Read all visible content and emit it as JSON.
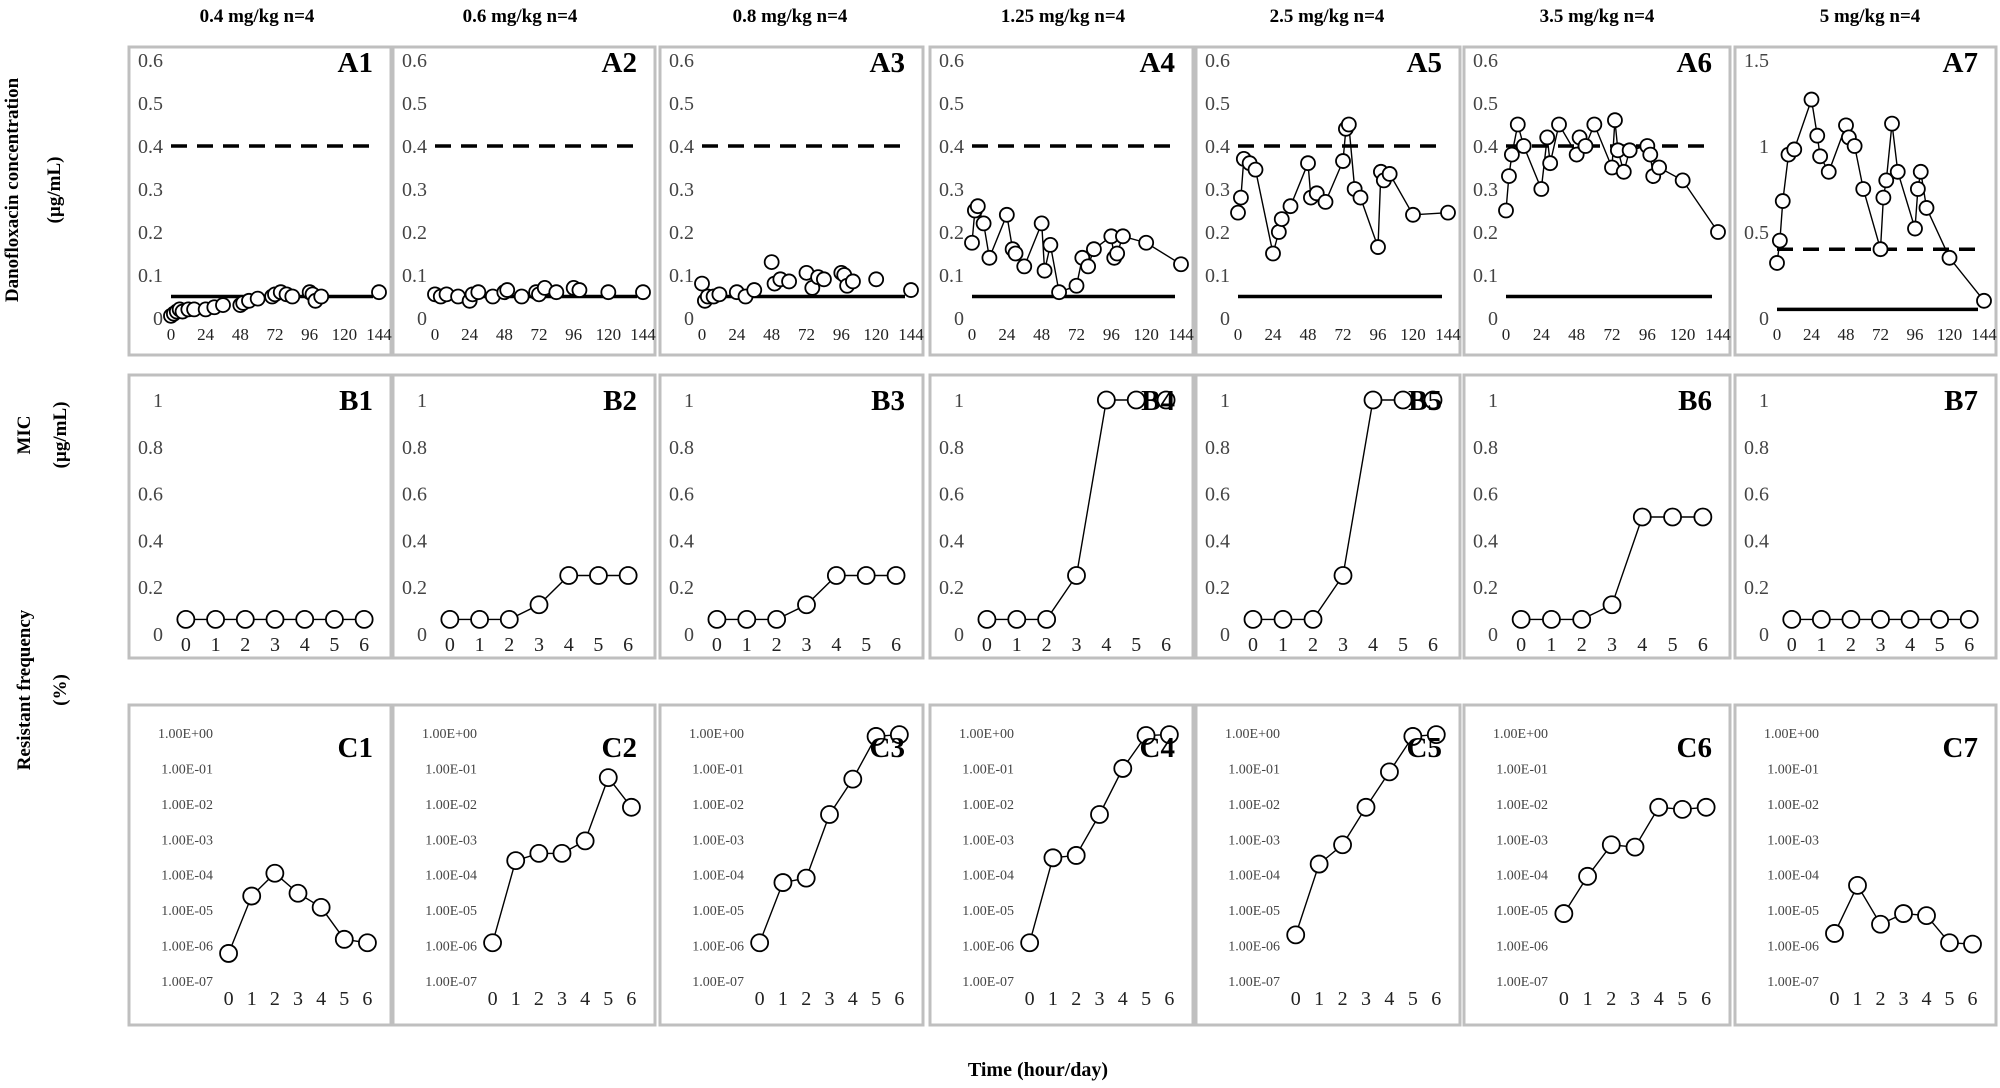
{
  "figure": {
    "x_axis_title": "Time (hour/day)",
    "row_labels": {
      "A": [
        "Danofloxacin concentration",
        "(µg/mL)"
      ],
      "B": [
        "MIC",
        "(µg/mL)"
      ],
      "C": [
        "Resistant frequency",
        "(%)"
      ]
    },
    "column_titles": [
      "0.4 mg/kg n=4",
      "0.6 mg/kg n=4",
      "0.8 mg/kg n=4",
      "1.25 mg/kg n=4",
      "2.5 mg/kg n=4",
      "3.5 mg/kg n=4",
      "5 mg/kg n=4"
    ],
    "colors": {
      "line": "#000000",
      "panel_border": "#bfbfbf",
      "marker_fill": "#ffffff"
    }
  },
  "chart_data": [
    {
      "id": "A1",
      "type": "scatter",
      "panel_label": "A1",
      "dose": "0.4 mg/kg n=4",
      "ylim": [
        0,
        0.6
      ],
      "yticks": [
        "0",
        "0.1",
        "0.2",
        "0.3",
        "0.4",
        "0.5",
        "0.6"
      ],
      "xticks": [
        "0",
        "24",
        "48",
        "72",
        "96",
        "120",
        "144"
      ],
      "xlim": [
        0,
        144
      ],
      "reference_lines": [
        {
          "style": "dashed",
          "y": 0.4
        },
        {
          "style": "solid",
          "y": 0.05
        }
      ],
      "x": [
        0,
        2,
        4,
        6,
        8,
        12,
        16,
        24,
        30,
        36,
        48,
        50,
        54,
        60,
        70,
        72,
        76,
        80,
        84,
        96,
        98,
        100,
        104,
        144
      ],
      "y": [
        0.005,
        0.01,
        0.015,
        0.02,
        0.015,
        0.02,
        0.02,
        0.02,
        0.025,
        0.03,
        0.03,
        0.035,
        0.04,
        0.045,
        0.05,
        0.055,
        0.06,
        0.055,
        0.05,
        0.06,
        0.055,
        0.04,
        0.05,
        0.06
      ]
    },
    {
      "id": "A2",
      "type": "scatter",
      "panel_label": "A2",
      "dose": "0.6 mg/kg n=4",
      "ylim": [
        0,
        0.6
      ],
      "yticks": [
        "0",
        "0.1",
        "0.2",
        "0.3",
        "0.4",
        "0.5",
        "0.6"
      ],
      "xticks": [
        "0",
        "24",
        "48",
        "72",
        "96",
        "120",
        "144"
      ],
      "xlim": [
        0,
        144
      ],
      "reference_lines": [
        {
          "style": "dashed",
          "y": 0.4
        },
        {
          "style": "solid",
          "y": 0.05
        }
      ],
      "x": [
        0,
        4,
        8,
        16,
        24,
        26,
        30,
        40,
        48,
        50,
        60,
        70,
        72,
        76,
        84,
        96,
        100,
        120,
        144
      ],
      "y": [
        0.055,
        0.05,
        0.055,
        0.05,
        0.04,
        0.055,
        0.06,
        0.05,
        0.06,
        0.065,
        0.05,
        0.06,
        0.055,
        0.07,
        0.06,
        0.07,
        0.065,
        0.06,
        0.06
      ]
    },
    {
      "id": "A3",
      "type": "scatter",
      "panel_label": "A3",
      "dose": "0.8 mg/kg n=4",
      "ylim": [
        0,
        0.6
      ],
      "yticks": [
        "0",
        "0.1",
        "0.2",
        "0.3",
        "0.4",
        "0.5",
        "0.6"
      ],
      "xticks": [
        "0",
        "24",
        "48",
        "72",
        "96",
        "120",
        "144"
      ],
      "xlim": [
        0,
        144
      ],
      "reference_lines": [
        {
          "style": "dashed",
          "y": 0.4
        },
        {
          "style": "solid",
          "y": 0.05
        }
      ],
      "x": [
        0,
        2,
        4,
        8,
        12,
        24,
        30,
        36,
        48,
        50,
        54,
        60,
        72,
        76,
        80,
        84,
        96,
        98,
        100,
        104,
        120,
        144
      ],
      "y": [
        0.08,
        0.04,
        0.05,
        0.05,
        0.055,
        0.06,
        0.05,
        0.065,
        0.13,
        0.08,
        0.09,
        0.085,
        0.105,
        0.07,
        0.095,
        0.09,
        0.105,
        0.1,
        0.075,
        0.085,
        0.09,
        0.065
      ]
    },
    {
      "id": "A4",
      "type": "scatter",
      "panel_label": "A4",
      "dose": "1.25 mg/kg n=4",
      "ylim": [
        0,
        0.6
      ],
      "yticks": [
        "0",
        "0.1",
        "0.2",
        "0.3",
        "0.4",
        "0.5",
        "0.6"
      ],
      "xticks": [
        "0",
        "24",
        "48",
        "72",
        "96",
        "120",
        "144"
      ],
      "xlim": [
        0,
        144
      ],
      "reference_lines": [
        {
          "style": "dashed",
          "y": 0.4
        },
        {
          "style": "solid",
          "y": 0.05
        }
      ],
      "x": [
        0,
        2,
        4,
        8,
        12,
        24,
        28,
        30,
        36,
        48,
        50,
        54,
        60,
        72,
        76,
        80,
        84,
        96,
        98,
        100,
        104,
        120,
        144
      ],
      "y": [
        0.175,
        0.25,
        0.26,
        0.22,
        0.14,
        0.24,
        0.16,
        0.15,
        0.12,
        0.22,
        0.11,
        0.17,
        0.06,
        0.075,
        0.14,
        0.12,
        0.16,
        0.19,
        0.14,
        0.15,
        0.19,
        0.175,
        0.125
      ]
    },
    {
      "id": "A5",
      "type": "scatter",
      "panel_label": "A5",
      "dose": "2.5 mg/kg n=4",
      "ylim": [
        0,
        0.6
      ],
      "yticks": [
        "0",
        "0.1",
        "0.2",
        "0.3",
        "0.4",
        "0.5",
        "0.6"
      ],
      "xticks": [
        "0",
        "24",
        "48",
        "72",
        "96",
        "120",
        "144"
      ],
      "xlim": [
        0,
        144
      ],
      "reference_lines": [
        {
          "style": "dashed",
          "y": 0.4
        },
        {
          "style": "solid",
          "y": 0.05
        }
      ],
      "x": [
        0,
        2,
        4,
        8,
        12,
        24,
        28,
        30,
        36,
        48,
        50,
        54,
        60,
        72,
        74,
        76,
        80,
        84,
        96,
        98,
        100,
        104,
        120,
        144
      ],
      "y": [
        0.245,
        0.28,
        0.37,
        0.36,
        0.345,
        0.15,
        0.2,
        0.23,
        0.26,
        0.36,
        0.28,
        0.29,
        0.27,
        0.365,
        0.44,
        0.45,
        0.3,
        0.28,
        0.165,
        0.34,
        0.32,
        0.335,
        0.24,
        0.245
      ]
    },
    {
      "id": "A6",
      "type": "scatter",
      "panel_label": "A6",
      "dose": "3.5 mg/kg n=4",
      "ylim": [
        0,
        0.6
      ],
      "yticks": [
        "0",
        "0.1",
        "0.2",
        "0.3",
        "0.4",
        "0.5",
        "0.6"
      ],
      "xticks": [
        "0",
        "24",
        "48",
        "72",
        "96",
        "120",
        "144"
      ],
      "xlim": [
        0,
        144
      ],
      "reference_lines": [
        {
          "style": "dashed",
          "y": 0.4
        },
        {
          "style": "solid",
          "y": 0.05
        }
      ],
      "x": [
        0,
        2,
        4,
        8,
        12,
        24,
        28,
        30,
        36,
        48,
        50,
        54,
        60,
        72,
        74,
        76,
        80,
        84,
        96,
        98,
        100,
        104,
        120,
        144
      ],
      "y": [
        0.25,
        0.33,
        0.38,
        0.45,
        0.4,
        0.3,
        0.42,
        0.36,
        0.45,
        0.38,
        0.42,
        0.4,
        0.45,
        0.35,
        0.46,
        0.39,
        0.34,
        0.39,
        0.4,
        0.38,
        0.33,
        0.35,
        0.32,
        0.2
      ]
    },
    {
      "id": "A7",
      "type": "scatter",
      "panel_label": "A7",
      "dose": "5 mg/kg n=4",
      "ylim": [
        0,
        1.5
      ],
      "yticks": [
        "0",
        "0.5",
        "1",
        "1.5"
      ],
      "xticks": [
        "0",
        "24",
        "48",
        "72",
        "96",
        "120",
        "144"
      ],
      "xlim": [
        0,
        144
      ],
      "reference_lines": [
        {
          "style": "dashed",
          "y": 0.4
        },
        {
          "style": "solid",
          "y": 0.05
        }
      ],
      "x": [
        0,
        2,
        4,
        8,
        12,
        24,
        28,
        30,
        36,
        48,
        50,
        54,
        60,
        72,
        74,
        76,
        80,
        84,
        96,
        98,
        100,
        104,
        120,
        144
      ],
      "y": [
        0.32,
        0.45,
        0.68,
        0.95,
        0.98,
        1.27,
        1.06,
        0.94,
        0.85,
        1.12,
        1.05,
        1.0,
        0.75,
        0.4,
        0.7,
        0.8,
        1.13,
        0.85,
        0.52,
        0.75,
        0.85,
        0.64,
        0.35,
        0.1
      ]
    },
    {
      "id": "B1",
      "type": "line",
      "panel_label": "B1",
      "ylim": [
        0,
        1
      ],
      "yticks": [
        "0",
        "0.2",
        "0.4",
        "0.6",
        "0.8",
        "1"
      ],
      "xticks": [
        "0",
        "1",
        "2",
        "3",
        "4",
        "5",
        "6"
      ],
      "xlim": [
        -0.5,
        6.5
      ],
      "x": [
        0,
        1,
        2,
        3,
        4,
        5,
        6
      ],
      "y": [
        0.0625,
        0.0625,
        0.0625,
        0.0625,
        0.0625,
        0.0625,
        0.0625
      ]
    },
    {
      "id": "B2",
      "type": "line",
      "panel_label": "B2",
      "ylim": [
        0,
        1
      ],
      "yticks": [
        "0",
        "0.2",
        "0.4",
        "0.6",
        "0.8",
        "1"
      ],
      "xticks": [
        "0",
        "1",
        "2",
        "3",
        "4",
        "5",
        "6"
      ],
      "xlim": [
        -0.5,
        6.5
      ],
      "x": [
        0,
        1,
        2,
        3,
        4,
        5,
        6
      ],
      "y": [
        0.0625,
        0.0625,
        0.0625,
        0.125,
        0.25,
        0.25,
        0.25
      ]
    },
    {
      "id": "B3",
      "type": "line",
      "panel_label": "B3",
      "ylim": [
        0,
        1
      ],
      "yticks": [
        "0",
        "0.2",
        "0.4",
        "0.6",
        "0.8",
        "1"
      ],
      "xticks": [
        "0",
        "1",
        "2",
        "3",
        "4",
        "5",
        "6"
      ],
      "xlim": [
        -0.5,
        6.5
      ],
      "x": [
        0,
        1,
        2,
        3,
        4,
        5,
        6
      ],
      "y": [
        0.0625,
        0.0625,
        0.0625,
        0.125,
        0.25,
        0.25,
        0.25
      ]
    },
    {
      "id": "B4",
      "type": "line",
      "panel_label": "B4",
      "ylim": [
        0,
        1
      ],
      "yticks": [
        "0",
        "0.2",
        "0.4",
        "0.6",
        "0.8",
        "1"
      ],
      "xticks": [
        "0",
        "1",
        "2",
        "3",
        "4",
        "5",
        "6"
      ],
      "xlim": [
        -0.5,
        6.5
      ],
      "x": [
        0,
        1,
        2,
        3,
        4,
        5,
        6
      ],
      "y": [
        0.0625,
        0.0625,
        0.0625,
        0.25,
        1,
        1,
        1
      ]
    },
    {
      "id": "B5",
      "type": "line",
      "panel_label": "B5",
      "ylim": [
        0,
        1
      ],
      "yticks": [
        "0",
        "0.2",
        "0.4",
        "0.6",
        "0.8",
        "1"
      ],
      "xticks": [
        "0",
        "1",
        "2",
        "3",
        "4",
        "5",
        "6"
      ],
      "xlim": [
        -0.5,
        6.5
      ],
      "x": [
        0,
        1,
        2,
        3,
        4,
        5,
        6
      ],
      "y": [
        0.0625,
        0.0625,
        0.0625,
        0.25,
        1,
        1,
        1
      ]
    },
    {
      "id": "B6",
      "type": "line",
      "panel_label": "B6",
      "ylim": [
        0,
        1
      ],
      "yticks": [
        "0",
        "0.2",
        "0.4",
        "0.6",
        "0.8",
        "1"
      ],
      "xticks": [
        "0",
        "1",
        "2",
        "3",
        "4",
        "5",
        "6"
      ],
      "xlim": [
        -0.5,
        6.5
      ],
      "x": [
        0,
        1,
        2,
        3,
        4,
        5,
        6
      ],
      "y": [
        0.0625,
        0.0625,
        0.0625,
        0.125,
        0.5,
        0.5,
        0.5
      ]
    },
    {
      "id": "B7",
      "type": "line",
      "panel_label": "B7",
      "ylim": [
        0,
        1
      ],
      "yticks": [
        "0",
        "0.2",
        "0.4",
        "0.6",
        "0.8",
        "1"
      ],
      "xticks": [
        "0",
        "1",
        "2",
        "3",
        "4",
        "5",
        "6"
      ],
      "xlim": [
        -0.5,
        6.5
      ],
      "x": [
        0,
        1,
        2,
        3,
        4,
        5,
        6
      ],
      "y": [
        0.0625,
        0.0625,
        0.0625,
        0.0625,
        0.0625,
        0.0625,
        0.0625
      ]
    },
    {
      "id": "C1",
      "type": "line",
      "panel_label": "C1",
      "yscale": "log",
      "ylim": [
        1e-07,
        1
      ],
      "yticks": [
        "1.00E-07",
        "1.00E-06",
        "1.00E-05",
        "1.00E-04",
        "1.00E-03",
        "1.00E-02",
        "1.00E-01",
        "1.00E+00"
      ],
      "xticks": [
        "0",
        "1",
        "2",
        "3",
        "4",
        "5",
        "6"
      ],
      "xlim": [
        -0.5,
        6.5
      ],
      "x": [
        0,
        1,
        2,
        3,
        4,
        5,
        6
      ],
      "y": [
        6e-07,
        2.5e-05,
        0.00011,
        3e-05,
        1.2e-05,
        1.5e-06,
        1.2e-06
      ]
    },
    {
      "id": "C2",
      "type": "line",
      "panel_label": "C2",
      "yscale": "log",
      "ylim": [
        1e-07,
        1
      ],
      "yticks": [
        "1.00E-07",
        "1.00E-06",
        "1.00E-05",
        "1.00E-04",
        "1.00E-03",
        "1.00E-02",
        "1.00E-01",
        "1.00E+00"
      ],
      "xticks": [
        "0",
        "1",
        "2",
        "3",
        "4",
        "5",
        "6"
      ],
      "xlim": [
        -0.5,
        6.5
      ],
      "x": [
        0,
        1,
        2,
        3,
        4,
        5,
        6
      ],
      "y": [
        1.2e-06,
        0.00025,
        0.0004,
        0.0004,
        0.0009,
        0.055,
        0.008
      ]
    },
    {
      "id": "C3",
      "type": "line",
      "panel_label": "C3",
      "yscale": "log",
      "ylim": [
        1e-07,
        1
      ],
      "yticks": [
        "1.00E-07",
        "1.00E-06",
        "1.00E-05",
        "1.00E-04",
        "1.00E-03",
        "1.00E-02",
        "1.00E-01",
        "1.00E+00"
      ],
      "xticks": [
        "0",
        "1",
        "2",
        "3",
        "4",
        "5",
        "6"
      ],
      "xlim": [
        -0.5,
        6.5
      ],
      "x": [
        0,
        1,
        2,
        3,
        4,
        5,
        6
      ],
      "y": [
        1.2e-06,
        6e-05,
        8e-05,
        0.005,
        0.05,
        0.8,
        0.9
      ]
    },
    {
      "id": "C4",
      "type": "line",
      "panel_label": "C4",
      "yscale": "log",
      "ylim": [
        1e-07,
        1
      ],
      "yticks": [
        "1.00E-07",
        "1.00E-06",
        "1.00E-05",
        "1.00E-04",
        "1.00E-03",
        "1.00E-02",
        "1.00E-01",
        "1.00E+00"
      ],
      "xticks": [
        "0",
        "1",
        "2",
        "3",
        "4",
        "5",
        "6"
      ],
      "xlim": [
        -0.5,
        6.5
      ],
      "x": [
        0,
        1,
        2,
        3,
        4,
        5,
        6
      ],
      "y": [
        1.2e-06,
        0.0003,
        0.00035,
        0.005,
        0.1,
        0.85,
        0.9
      ]
    },
    {
      "id": "C5",
      "type": "line",
      "panel_label": "C5",
      "yscale": "log",
      "ylim": [
        1e-07,
        1
      ],
      "yticks": [
        "1.00E-07",
        "1.00E-06",
        "1.00E-05",
        "1.00E-04",
        "1.00E-03",
        "1.00E-02",
        "1.00E-01",
        "1.00E+00"
      ],
      "xticks": [
        "0",
        "1",
        "2",
        "3",
        "4",
        "5",
        "6"
      ],
      "xlim": [
        -0.5,
        6.5
      ],
      "x": [
        0,
        1,
        2,
        3,
        4,
        5,
        6
      ],
      "y": [
        2e-06,
        0.0002,
        0.0007,
        0.008,
        0.08,
        0.8,
        0.9
      ]
    },
    {
      "id": "C6",
      "type": "line",
      "panel_label": "C6",
      "yscale": "log",
      "ylim": [
        1e-07,
        1
      ],
      "yticks": [
        "1.00E-07",
        "1.00E-06",
        "1.00E-05",
        "1.00E-04",
        "1.00E-03",
        "1.00E-02",
        "1.00E-01",
        "1.00E+00"
      ],
      "xticks": [
        "0",
        "1",
        "2",
        "3",
        "4",
        "5",
        "6"
      ],
      "xlim": [
        -0.5,
        6.5
      ],
      "x": [
        0,
        1,
        2,
        3,
        4,
        5,
        6
      ],
      "y": [
        8e-06,
        9e-05,
        0.0007,
        0.0006,
        0.008,
        0.007,
        0.008
      ]
    },
    {
      "id": "C7",
      "type": "line",
      "panel_label": "C7",
      "yscale": "log",
      "ylim": [
        1e-07,
        1
      ],
      "yticks": [
        "1.00E-07",
        "1.00E-06",
        "1.00E-05",
        "1.00E-04",
        "1.00E-03",
        "1.00E-02",
        "1.00E-01",
        "1.00E+00"
      ],
      "xticks": [
        "0",
        "1",
        "2",
        "3",
        "4",
        "5",
        "6"
      ],
      "xlim": [
        -0.5,
        6.5
      ],
      "x": [
        0,
        1,
        2,
        3,
        4,
        5,
        6
      ],
      "y": [
        2.2e-06,
        5e-05,
        4e-06,
        8e-06,
        7e-06,
        1.2e-06,
        1.1e-06
      ]
    }
  ]
}
